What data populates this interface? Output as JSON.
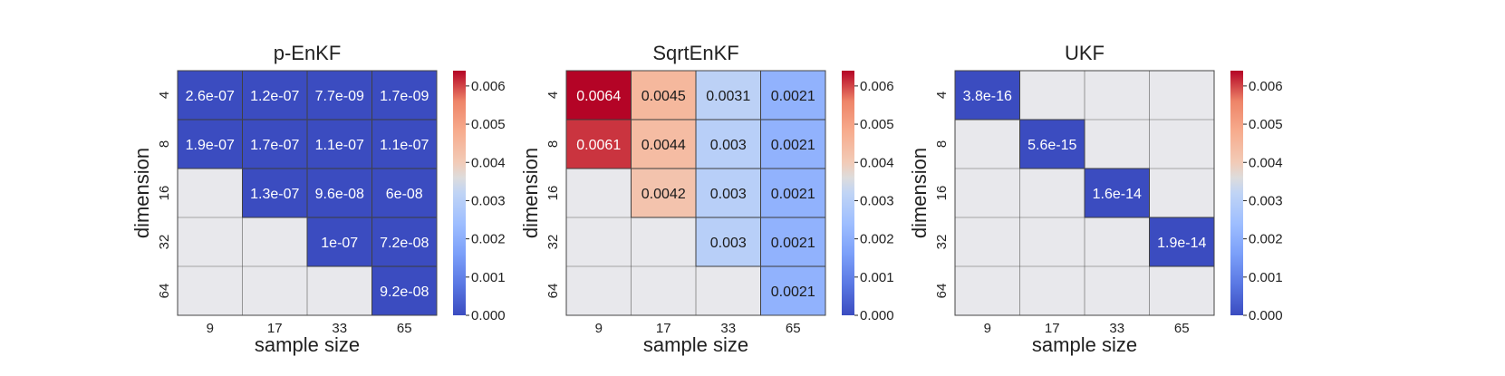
{
  "chart_data": [
    {
      "type": "heatmap",
      "title": "p-EnKF",
      "xlabel": "sample size",
      "ylabel": "dimension",
      "x_categories": [
        "9",
        "17",
        "33",
        "65"
      ],
      "y_categories": [
        "4",
        "8",
        "16",
        "32",
        "64"
      ],
      "values": [
        [
          2.6e-07,
          1.2e-07,
          7.7e-09,
          1.7e-09
        ],
        [
          1.9e-07,
          1.7e-07,
          1.1e-07,
          1.1e-07
        ],
        [
          null,
          1.3e-07,
          9.6e-08,
          6e-08
        ],
        [
          null,
          null,
          1e-07,
          7.2e-08
        ],
        [
          null,
          null,
          null,
          9.2e-08
        ]
      ],
      "cell_labels": [
        [
          "2.6e-07",
          "1.2e-07",
          "7.7e-09",
          "1.7e-09"
        ],
        [
          "1.9e-07",
          "1.7e-07",
          "1.1e-07",
          "1.1e-07"
        ],
        [
          "",
          "1.3e-07",
          "9.6e-08",
          "6e-08"
        ],
        [
          "",
          "",
          "1e-07",
          "7.2e-08"
        ],
        [
          "",
          "",
          "",
          "9.2e-08"
        ]
      ],
      "colorbar_ticks": [
        "0.000",
        "0.001",
        "0.002",
        "0.003",
        "0.004",
        "0.005",
        "0.006"
      ],
      "colorbar_range": [
        0,
        0.0064
      ],
      "colormap": "coolwarm",
      "missing_color": "#e8e8ec"
    },
    {
      "type": "heatmap",
      "title": "SqrtEnKF",
      "xlabel": "sample size",
      "ylabel": "dimension",
      "x_categories": [
        "9",
        "17",
        "33",
        "65"
      ],
      "y_categories": [
        "4",
        "8",
        "16",
        "32",
        "64"
      ],
      "values": [
        [
          0.0064,
          0.0045,
          0.0031,
          0.0021
        ],
        [
          0.0061,
          0.0044,
          0.003,
          0.0021
        ],
        [
          null,
          0.0042,
          0.003,
          0.0021
        ],
        [
          null,
          null,
          0.003,
          0.0021
        ],
        [
          null,
          null,
          null,
          0.0021
        ]
      ],
      "cell_labels": [
        [
          "0.0064",
          "0.0045",
          "0.0031",
          "0.0021"
        ],
        [
          "0.0061",
          "0.0044",
          "0.003",
          "0.0021"
        ],
        [
          "",
          "0.0042",
          "0.003",
          "0.0021"
        ],
        [
          "",
          "",
          "0.003",
          "0.0021"
        ],
        [
          "",
          "",
          "",
          "0.0021"
        ]
      ],
      "colorbar_ticks": [
        "0.000",
        "0.001",
        "0.002",
        "0.003",
        "0.004",
        "0.005",
        "0.006"
      ],
      "colorbar_range": [
        0,
        0.0064
      ],
      "colormap": "coolwarm",
      "missing_color": "#e8e8ec"
    },
    {
      "type": "heatmap",
      "title": "UKF",
      "xlabel": "sample size",
      "ylabel": "dimension",
      "x_categories": [
        "9",
        "17",
        "33",
        "65"
      ],
      "y_categories": [
        "4",
        "8",
        "16",
        "32",
        "64"
      ],
      "values": [
        [
          3.8e-16,
          null,
          null,
          null
        ],
        [
          null,
          5.6e-15,
          null,
          null
        ],
        [
          null,
          null,
          1.6e-14,
          null
        ],
        [
          null,
          null,
          null,
          1.9e-14
        ],
        [
          null,
          null,
          null,
          null
        ]
      ],
      "cell_labels": [
        [
          "3.8e-16",
          "",
          "",
          ""
        ],
        [
          "",
          "5.6e-15",
          "",
          ""
        ],
        [
          "",
          "",
          "1.6e-14",
          ""
        ],
        [
          "",
          "",
          "",
          "1.9e-14"
        ],
        [
          "",
          "",
          "",
          ""
        ]
      ],
      "colorbar_ticks": [
        "0.000",
        "0.001",
        "0.002",
        "0.003",
        "0.004",
        "0.005",
        "0.006"
      ],
      "colorbar_range": [
        0,
        0.0064
      ],
      "colormap": "coolwarm",
      "missing_color": "#e8e8ec"
    }
  ]
}
